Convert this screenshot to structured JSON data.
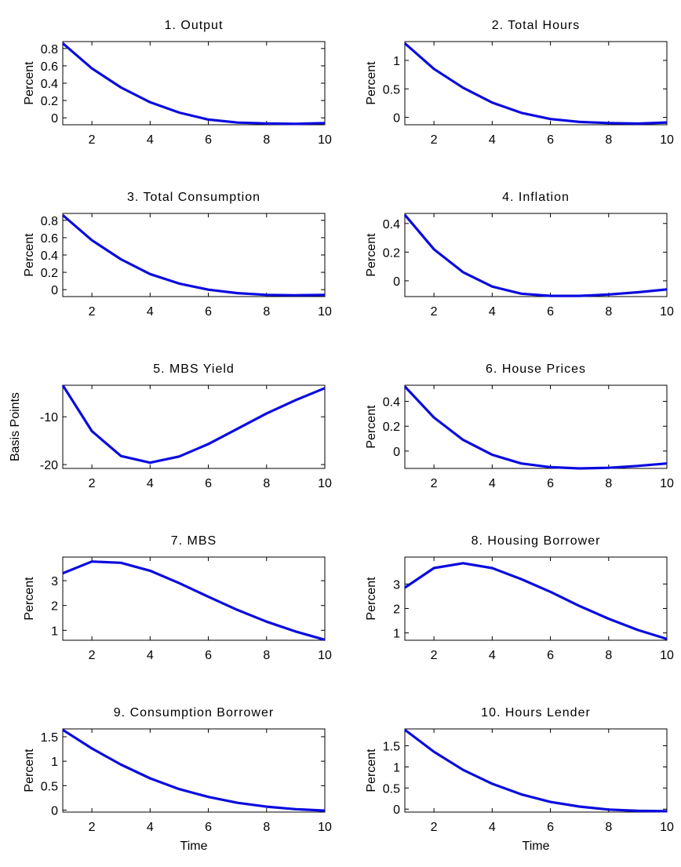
{
  "line_color": "#0b0bdf",
  "chart_data": [
    {
      "type": "line",
      "title": "1. Output",
      "ylabel": "Percent",
      "xlabel": "",
      "xlim": [
        1,
        10
      ],
      "ylim": [
        -0.08,
        0.88
      ],
      "xticks": [
        2,
        4,
        6,
        8,
        10
      ],
      "yticks": [
        0,
        0.2,
        0.4,
        0.6,
        0.8
      ],
      "ytick_labels": [
        "0",
        "0.2",
        "0.4",
        "0.6",
        "0.8"
      ],
      "x": [
        1,
        2,
        3,
        4,
        5,
        6,
        7,
        8,
        9,
        10
      ],
      "y": [
        0.86,
        0.57,
        0.35,
        0.18,
        0.06,
        -0.02,
        -0.055,
        -0.065,
        -0.07,
        -0.06
      ]
    },
    {
      "type": "line",
      "title": "2. Total Hours",
      "ylabel": "Percent",
      "xlabel": "",
      "xlim": [
        1,
        10
      ],
      "ylim": [
        -0.13,
        1.33
      ],
      "xticks": [
        2,
        4,
        6,
        8,
        10
      ],
      "yticks": [
        0,
        0.5,
        1
      ],
      "ytick_labels": [
        "0",
        "0.5",
        "1"
      ],
      "x": [
        1,
        2,
        3,
        4,
        5,
        6,
        7,
        8,
        9,
        10
      ],
      "y": [
        1.3,
        0.85,
        0.52,
        0.26,
        0.08,
        -0.03,
        -0.08,
        -0.1,
        -0.11,
        -0.09
      ]
    },
    {
      "type": "line",
      "title": "3. Total Consumption",
      "ylabel": "Percent",
      "xlabel": "",
      "xlim": [
        1,
        10
      ],
      "ylim": [
        -0.08,
        0.88
      ],
      "xticks": [
        2,
        4,
        6,
        8,
        10
      ],
      "yticks": [
        0,
        0.2,
        0.4,
        0.6,
        0.8
      ],
      "ytick_labels": [
        "0",
        "0.2",
        "0.4",
        "0.6",
        "0.8"
      ],
      "x": [
        1,
        2,
        3,
        4,
        5,
        6,
        7,
        8,
        9,
        10
      ],
      "y": [
        0.86,
        0.57,
        0.35,
        0.18,
        0.07,
        0.0,
        -0.04,
        -0.06,
        -0.065,
        -0.06
      ]
    },
    {
      "type": "line",
      "title": "4. Inflation",
      "ylabel": "Percent",
      "xlabel": "",
      "xlim": [
        1,
        10
      ],
      "ylim": [
        -0.11,
        0.47
      ],
      "xticks": [
        2,
        4,
        6,
        8,
        10
      ],
      "yticks": [
        0,
        0.2,
        0.4
      ],
      "ytick_labels": [
        "0",
        "0.2",
        "0.4"
      ],
      "x": [
        1,
        2,
        3,
        4,
        5,
        6,
        7,
        8,
        9,
        10
      ],
      "y": [
        0.46,
        0.22,
        0.06,
        -0.04,
        -0.09,
        -0.105,
        -0.105,
        -0.095,
        -0.08,
        -0.06
      ]
    },
    {
      "type": "line",
      "title": "5. MBS Yield",
      "ylabel": "Basis Points",
      "xlabel": "",
      "xlim": [
        1,
        10
      ],
      "ylim": [
        -20.8,
        -3.4
      ],
      "xticks": [
        2,
        4,
        6,
        8,
        10
      ],
      "yticks": [
        -10,
        -20
      ],
      "ytick_labels": [
        "-10",
        "-20"
      ],
      "x": [
        1,
        2,
        3,
        4,
        5,
        6,
        7,
        8,
        9,
        10
      ],
      "y": [
        -3.4,
        -13.0,
        -18.2,
        -19.6,
        -18.3,
        -15.7,
        -12.5,
        -9.3,
        -6.5,
        -4.0
      ]
    },
    {
      "type": "line",
      "title": "6. House Prices",
      "ylabel": "Percent",
      "xlabel": "",
      "xlim": [
        1,
        10
      ],
      "ylim": [
        -0.14,
        0.53
      ],
      "xticks": [
        2,
        4,
        6,
        8,
        10
      ],
      "yticks": [
        0,
        0.2,
        0.4
      ],
      "ytick_labels": [
        "0",
        "0.2",
        "0.4"
      ],
      "x": [
        1,
        2,
        3,
        4,
        5,
        6,
        7,
        8,
        9,
        10
      ],
      "y": [
        0.52,
        0.27,
        0.09,
        -0.03,
        -0.1,
        -0.13,
        -0.14,
        -0.135,
        -0.12,
        -0.1
      ]
    },
    {
      "type": "line",
      "title": "7. MBS",
      "ylabel": "Percent",
      "xlabel": "",
      "xlim": [
        1,
        10
      ],
      "ylim": [
        0.6,
        3.95
      ],
      "xticks": [
        2,
        4,
        6,
        8,
        10
      ],
      "yticks": [
        1,
        2,
        3
      ],
      "ytick_labels": [
        "1",
        "2",
        "3"
      ],
      "x": [
        1,
        2,
        3,
        4,
        5,
        6,
        7,
        8,
        9,
        10
      ],
      "y": [
        3.3,
        3.77,
        3.72,
        3.4,
        2.9,
        2.35,
        1.82,
        1.35,
        0.95,
        0.62
      ]
    },
    {
      "type": "line",
      "title": "8. Housing Borrower",
      "ylabel": "Percent",
      "xlabel": "",
      "xlim": [
        1,
        10
      ],
      "ylim": [
        0.7,
        4.1
      ],
      "xticks": [
        2,
        4,
        6,
        8,
        10
      ],
      "yticks": [
        1,
        2,
        3
      ],
      "ytick_labels": [
        "1",
        "2",
        "3"
      ],
      "x": [
        1,
        2,
        3,
        4,
        5,
        6,
        7,
        8,
        9,
        10
      ],
      "y": [
        2.85,
        3.65,
        3.85,
        3.65,
        3.2,
        2.68,
        2.1,
        1.58,
        1.12,
        0.75
      ]
    },
    {
      "type": "line",
      "title": "9. Consumption Borrower",
      "ylabel": "Percent",
      "xlabel": "Time",
      "xlim": [
        1,
        10
      ],
      "ylim": [
        -0.04,
        1.66
      ],
      "xticks": [
        2,
        4,
        6,
        8,
        10
      ],
      "yticks": [
        0,
        0.5,
        1,
        1.5
      ],
      "ytick_labels": [
        "0",
        "0.5",
        "1",
        "1.5"
      ],
      "x": [
        1,
        2,
        3,
        4,
        5,
        6,
        7,
        8,
        9,
        10
      ],
      "y": [
        1.64,
        1.26,
        0.93,
        0.65,
        0.43,
        0.27,
        0.15,
        0.07,
        0.02,
        -0.01
      ]
    },
    {
      "type": "line",
      "title": "10. Hours Lender",
      "ylabel": "Percent",
      "xlabel": "Time",
      "xlim": [
        1,
        10
      ],
      "ylim": [
        -0.07,
        1.9
      ],
      "xticks": [
        2,
        4,
        6,
        8,
        10
      ],
      "yticks": [
        0,
        0.5,
        1,
        1.5
      ],
      "ytick_labels": [
        "0",
        "0.5",
        "1",
        "1.5"
      ],
      "x": [
        1,
        2,
        3,
        4,
        5,
        6,
        7,
        8,
        9,
        10
      ],
      "y": [
        1.88,
        1.36,
        0.93,
        0.6,
        0.35,
        0.17,
        0.06,
        -0.01,
        -0.04,
        -0.05
      ]
    }
  ]
}
